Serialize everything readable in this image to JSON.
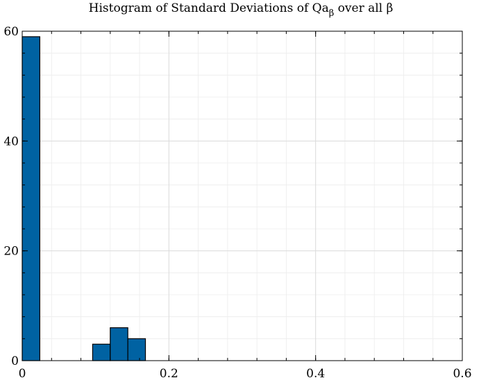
{
  "chart_data": {
    "type": "bar",
    "title": "Histogram of Standard Deviations of Qa",
    "title_subscript": "β",
    "title_suffix": " over all β",
    "xlabel": "",
    "ylabel": "",
    "xlim": [
      0,
      0.6
    ],
    "ylim": [
      0,
      60
    ],
    "x_ticks": [
      0,
      0.2,
      0.4,
      0.6
    ],
    "x_tick_labels": [
      "0",
      "0.2",
      "0.4",
      "0.6"
    ],
    "y_ticks": [
      0,
      20,
      40,
      60
    ],
    "y_tick_labels": [
      "0",
      "20",
      "40",
      "60"
    ],
    "grid": true,
    "minor_grid": true,
    "bar_color": "#0062a2",
    "bins": [
      {
        "x0": 0.0,
        "x1": 0.024,
        "value": 59
      },
      {
        "x0": 0.096,
        "x1": 0.12,
        "value": 3
      },
      {
        "x0": 0.12,
        "x1": 0.144,
        "value": 6
      },
      {
        "x0": 0.144,
        "x1": 0.168,
        "value": 4
      }
    ]
  }
}
